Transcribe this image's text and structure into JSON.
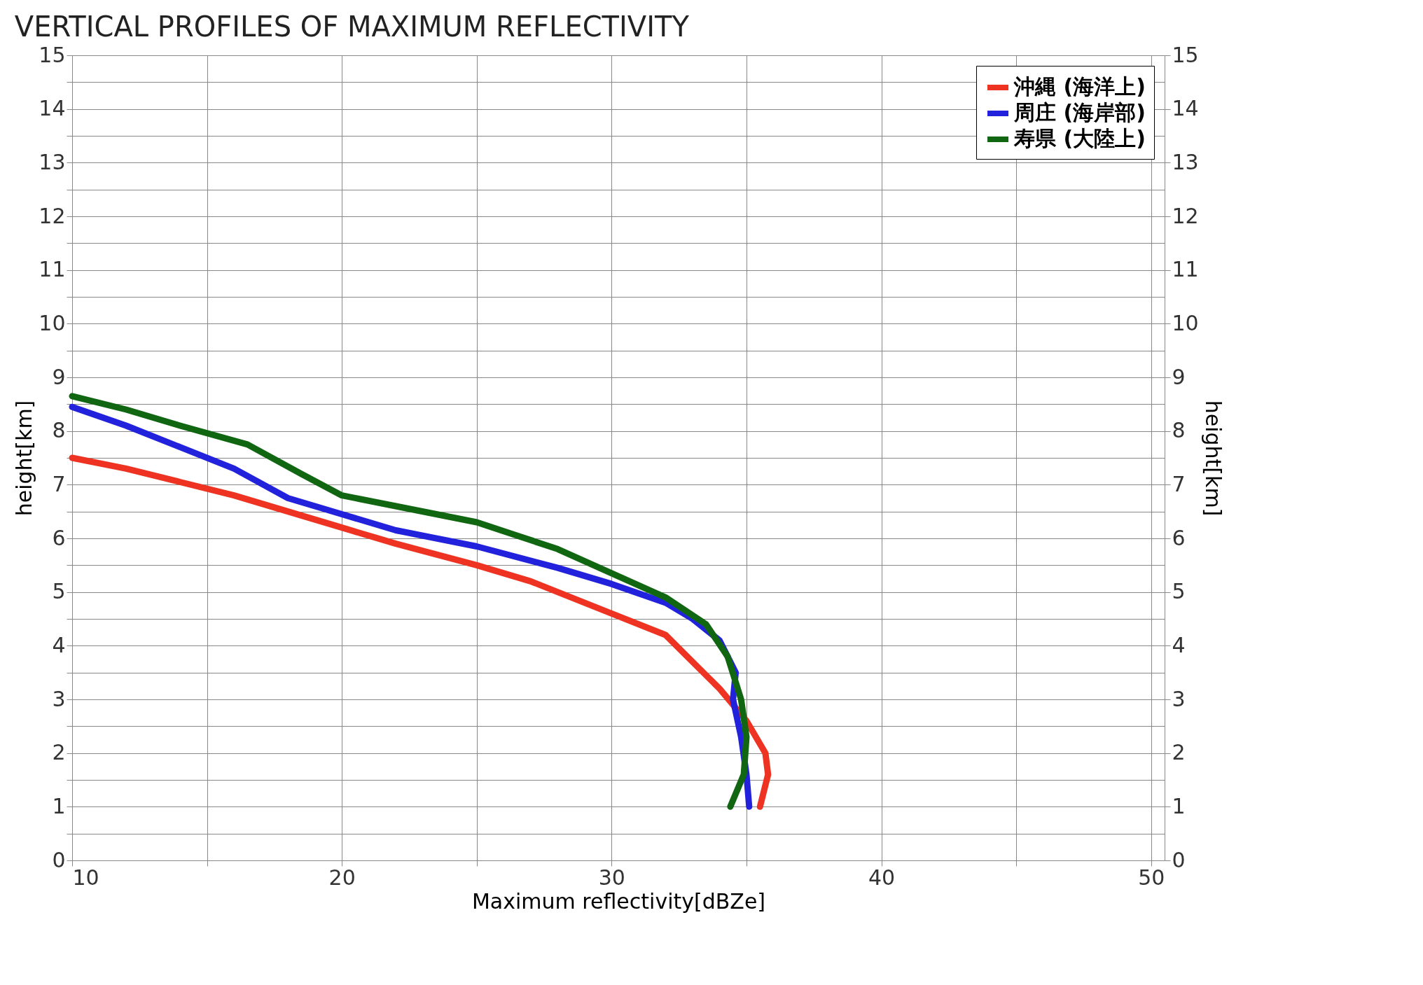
{
  "chart_data": {
    "type": "line",
    "title": "VERTICAL PROFILES OF MAXIMUM REFLECTIVITY",
    "xlabel": "Maximum reflectivity[dBZe]",
    "ylabel": "height[km]",
    "y2label": "height[km]",
    "xlim": [
      10,
      50.5
    ],
    "xticks": [
      10,
      {
        "value": 15,
        "label": null
      },
      20,
      {
        "value": 25,
        "label": null
      },
      30,
      {
        "value": 35,
        "label": null
      },
      40,
      {
        "value": 45,
        "label": null
      },
      50
    ],
    "ylim": [
      0,
      15
    ],
    "yticks": [
      0,
      {
        "value": 0.5,
        "label": null
      },
      1,
      {
        "value": 1.5,
        "label": null
      },
      2,
      {
        "value": 2.5,
        "label": null
      },
      3,
      {
        "value": 3.5,
        "label": null
      },
      4,
      {
        "value": 4.5,
        "label": null
      },
      5,
      {
        "value": 5.5,
        "label": null
      },
      6,
      {
        "value": 6.5,
        "label": null
      },
      7,
      {
        "value": 7.5,
        "label": null
      },
      8,
      {
        "value": 8.5,
        "label": null
      },
      9,
      {
        "value": 9.5,
        "label": null
      },
      10,
      {
        "value": 10.5,
        "label": null
      },
      11,
      {
        "value": 11.5,
        "label": null
      },
      12,
      {
        "value": 12.5,
        "label": null
      },
      13,
      {
        "value": 13.5,
        "label": null
      },
      14,
      {
        "value": 14.5,
        "label": null
      },
      15
    ],
    "y2lim": [
      0,
      15
    ],
    "y2ticks": [
      0,
      1,
      2,
      3,
      4,
      5,
      6,
      7,
      8,
      9,
      10,
      11,
      12,
      13,
      14,
      15
    ],
    "grid": true,
    "legend": "top right",
    "marker": "none",
    "line_style": "solid",
    "series": [
      {
        "name": "沖縄 (海洋上)",
        "color": "#ee3322",
        "x": [
          10,
          12,
          14,
          16,
          18,
          20,
          22,
          25,
          27,
          30,
          32,
          33,
          34,
          35,
          35.7,
          35.8,
          35.5
        ],
        "values": [
          7.5,
          7.3,
          7.05,
          6.8,
          6.5,
          6.2,
          5.9,
          5.5,
          5.2,
          4.6,
          4.2,
          3.7,
          3.2,
          2.6,
          2.0,
          1.6,
          1.0
        ]
      },
      {
        "name": "周庄 (海岸部)",
        "color": "#2222dd",
        "x": [
          10,
          12,
          14,
          16,
          18,
          20,
          22,
          25,
          28,
          30,
          32,
          33,
          34,
          34.6,
          34.5,
          34.8,
          35.0,
          35.1
        ],
        "values": [
          8.45,
          8.1,
          7.7,
          7.3,
          6.75,
          6.45,
          6.15,
          5.85,
          5.45,
          5.15,
          4.8,
          4.5,
          4.1,
          3.5,
          3.0,
          2.3,
          1.6,
          1.0
        ]
      },
      {
        "name": "寿県 (大陸上)",
        "color": "#116611",
        "x": [
          10,
          12,
          14,
          16.5,
          18.5,
          20,
          22,
          25,
          28,
          30,
          32,
          33.5,
          34.3,
          34.8,
          35.0,
          34.9,
          34.4
        ],
        "values": [
          8.65,
          8.4,
          8.1,
          7.75,
          7.2,
          6.8,
          6.6,
          6.3,
          5.8,
          5.35,
          4.9,
          4.4,
          3.8,
          3.0,
          2.3,
          1.6,
          1.0
        ]
      }
    ]
  }
}
